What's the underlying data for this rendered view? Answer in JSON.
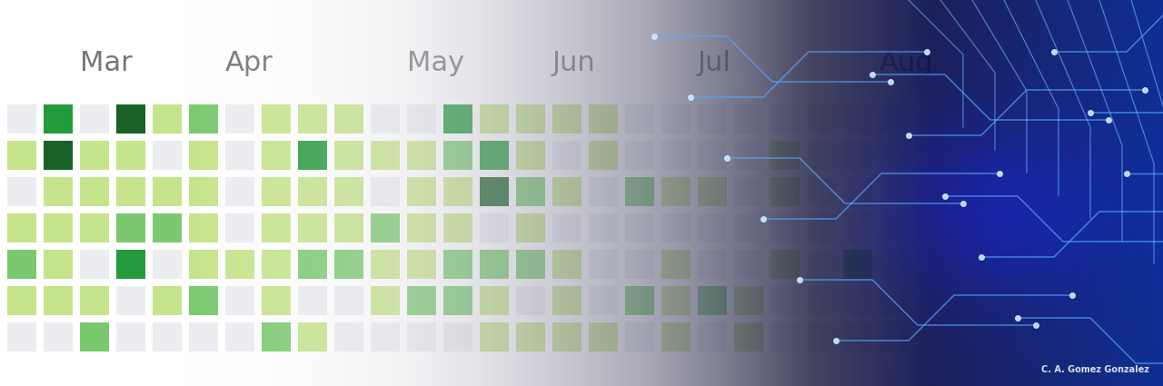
{
  "chart_data": {
    "type": "heatmap",
    "categories": [
      null,
      null,
      "Mar",
      null,
      null,
      null,
      "Apr",
      null,
      null,
      null,
      null,
      "May",
      null,
      null,
      null,
      "Jun",
      null,
      null,
      null,
      "Jul",
      null,
      null,
      null,
      null,
      "Aug"
    ],
    "cells": [
      [
        0,
        3,
        0,
        4,
        1,
        2,
        0,
        1,
        1,
        1,
        0,
        0,
        3,
        1,
        1,
        1,
        1,
        0,
        0,
        0,
        0,
        0,
        0,
        0,
        0
      ],
      [
        1,
        4,
        1,
        1,
        0,
        1,
        0,
        1,
        3,
        1,
        1,
        1,
        2,
        3,
        1,
        0,
        1,
        0,
        0,
        0,
        0,
        1,
        0,
        0,
        0
      ],
      [
        0,
        1,
        1,
        1,
        1,
        1,
        0,
        1,
        1,
        1,
        0,
        1,
        1,
        4,
        2,
        1,
        0,
        2,
        1,
        1,
        0,
        1,
        0,
        0,
        0
      ],
      [
        1,
        1,
        1,
        2,
        2,
        1,
        0,
        1,
        1,
        1,
        2,
        1,
        1,
        0,
        1,
        0,
        0,
        0,
        0,
        0,
        0,
        0,
        0,
        0,
        0
      ],
      [
        2,
        1,
        0,
        3,
        0,
        1,
        1,
        1,
        2,
        2,
        1,
        1,
        2,
        2,
        2,
        1,
        0,
        0,
        1,
        0,
        0,
        1,
        0,
        2,
        0
      ],
      [
        1,
        1,
        1,
        0,
        1,
        2,
        0,
        1,
        0,
        0,
        1,
        2,
        2,
        1,
        0,
        1,
        0,
        2,
        1,
        2,
        1,
        0,
        0,
        0,
        0
      ],
      [
        0,
        0,
        2,
        0,
        0,
        0,
        0,
        2,
        1,
        0,
        0,
        0,
        0,
        1,
        1,
        1,
        1,
        0,
        1,
        0,
        1,
        0,
        0,
        0,
        0
      ]
    ],
    "colors": [
      "#ebedf0",
      "#c6e48b",
      "#7bc96f",
      "#239a3b",
      "#196127"
    ],
    "tick_labels": "x",
    "credit": "C. A. Gomez Gonzalez"
  }
}
